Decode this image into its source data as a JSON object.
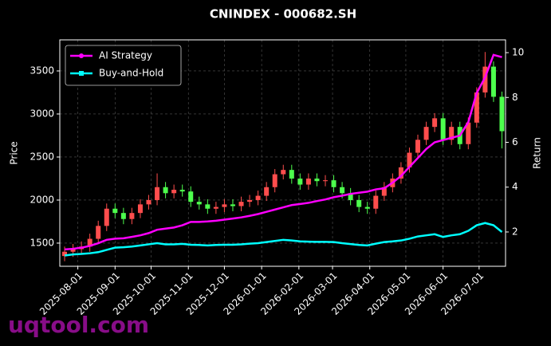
{
  "chart_data": {
    "type": "candlestick",
    "title": "CNINDEX - 000682.SH",
    "y_label": "Price",
    "y2_label": "Return",
    "watermark": "uqtool.com",
    "legend": "upper left",
    "grid": true,
    "up_color": "#ff4d4d",
    "down_color": "#4dff4d",
    "x": [
      "2025-07-21",
      "2025-07-28",
      "2025-08-04",
      "2025-08-11",
      "2025-08-18",
      "2025-08-25",
      "2025-09-01",
      "2025-09-08",
      "2025-09-15",
      "2025-09-22",
      "2025-09-29",
      "2025-10-06",
      "2025-10-13",
      "2025-10-20",
      "2025-10-27",
      "2025-11-03",
      "2025-11-10",
      "2025-11-17",
      "2025-11-24",
      "2025-12-01",
      "2025-12-08",
      "2025-12-15",
      "2025-12-22",
      "2025-12-29",
      "2026-01-05",
      "2026-01-12",
      "2026-01-19",
      "2026-01-26",
      "2026-02-02",
      "2026-02-09",
      "2026-02-16",
      "2026-02-23",
      "2026-03-02",
      "2026-03-09",
      "2026-03-16",
      "2026-03-23",
      "2026-03-30",
      "2026-04-06",
      "2026-04-13",
      "2026-04-20",
      "2026-04-27",
      "2026-05-04",
      "2026-05-11",
      "2026-05-18",
      "2026-05-25",
      "2026-06-01",
      "2026-06-08",
      "2026-06-15",
      "2026-06-22",
      "2026-06-29",
      "2026-07-06",
      "2026-07-13",
      "2026-07-20"
    ],
    "open": [
      1350,
      1400,
      1430,
      1460,
      1550,
      1700,
      1900,
      1850,
      1780,
      1850,
      1950,
      2000,
      2150,
      2080,
      2120,
      2100,
      1980,
      1950,
      1900,
      1920,
      1950,
      1930,
      1980,
      2000,
      2050,
      2150,
      2300,
      2350,
      2250,
      2180,
      2250,
      2220,
      2230,
      2150,
      2080,
      2000,
      1920,
      1900,
      2050,
      2150,
      2250,
      2380,
      2550,
      2700,
      2850,
      2950,
      2700,
      2850,
      2650,
      2900,
      3250,
      3550,
      3200
    ],
    "high": [
      1460,
      1490,
      1520,
      1610,
      1760,
      1960,
      1960,
      1910,
      1910,
      2010,
      2060,
      2310,
      2210,
      2180,
      2180,
      2160,
      2040,
      2010,
      1980,
      2010,
      2010,
      2040,
      2060,
      2110,
      2210,
      2360,
      2410,
      2410,
      2310,
      2310,
      2310,
      2290,
      2290,
      2210,
      2140,
      2060,
      1980,
      2110,
      2210,
      2310,
      2440,
      2610,
      2760,
      2910,
      3010,
      3010,
      2910,
      2910,
      2960,
      3310,
      3720,
      3610,
      3260
    ],
    "low": [
      1290,
      1340,
      1370,
      1400,
      1490,
      1640,
      1790,
      1720,
      1720,
      1790,
      1890,
      1940,
      2020,
      2020,
      2040,
      1920,
      1890,
      1840,
      1840,
      1860,
      1870,
      1870,
      1920,
      1940,
      1990,
      2090,
      2240,
      2190,
      2120,
      2120,
      2160,
      2160,
      2090,
      2020,
      1940,
      1860,
      1840,
      1840,
      1990,
      2090,
      2190,
      2320,
      2490,
      2640,
      2790,
      2640,
      2640,
      2590,
      2590,
      2840,
      3190,
      3140,
      2600
    ],
    "close": [
      1400,
      1430,
      1460,
      1550,
      1700,
      1900,
      1850,
      1780,
      1850,
      1950,
      2000,
      2150,
      2080,
      2120,
      2100,
      1980,
      1950,
      1900,
      1920,
      1950,
      1930,
      1980,
      2000,
      2050,
      2150,
      2300,
      2350,
      2250,
      2180,
      2250,
      2220,
      2230,
      2150,
      2080,
      2000,
      1920,
      1900,
      2050,
      2150,
      2250,
      2380,
      2550,
      2700,
      2850,
      2950,
      2700,
      2850,
      2650,
      2900,
      3250,
      3550,
      3200,
      2800
    ],
    "series": [
      {
        "name": "AI Strategy",
        "color": "#ff00ff",
        "axis": "y2",
        "values": [
          1.22,
          1.25,
          1.3,
          1.38,
          1.5,
          1.65,
          1.7,
          1.72,
          1.78,
          1.85,
          1.95,
          2.1,
          2.15,
          2.2,
          2.3,
          2.45,
          2.45,
          2.47,
          2.5,
          2.55,
          2.6,
          2.65,
          2.72,
          2.8,
          2.9,
          3.0,
          3.1,
          3.2,
          3.25,
          3.3,
          3.38,
          3.45,
          3.55,
          3.62,
          3.7,
          3.75,
          3.8,
          3.9,
          3.95,
          4.2,
          4.5,
          4.9,
          5.3,
          5.7,
          6.0,
          6.1,
          6.2,
          6.3,
          6.9,
          8.2,
          8.9,
          9.9,
          9.8
        ]
      },
      {
        "name": "Buy-and-Hold",
        "color": "#00ffff",
        "axis": "y2",
        "values": [
          0.95,
          1.0,
          1.02,
          1.05,
          1.1,
          1.2,
          1.3,
          1.32,
          1.35,
          1.4,
          1.45,
          1.5,
          1.45,
          1.45,
          1.47,
          1.43,
          1.42,
          1.4,
          1.42,
          1.43,
          1.43,
          1.45,
          1.48,
          1.5,
          1.55,
          1.6,
          1.65,
          1.62,
          1.58,
          1.57,
          1.56,
          1.56,
          1.55,
          1.5,
          1.46,
          1.42,
          1.4,
          1.48,
          1.55,
          1.58,
          1.62,
          1.7,
          1.8,
          1.85,
          1.9,
          1.78,
          1.85,
          1.9,
          2.05,
          2.3,
          2.4,
          2.3,
          2.0
        ]
      }
    ],
    "xlim": [
      "2025-07-17",
      "2026-07-23"
    ],
    "xticks": [
      "2025-08-01",
      "2025-09-01",
      "2025-10-01",
      "2025-11-01",
      "2025-12-01",
      "2026-01-01",
      "2026-02-01",
      "2026-03-01",
      "2026-04-01",
      "2026-05-01",
      "2026-06-01",
      "2026-07-01"
    ],
    "ylim": [
      1231,
      3861
    ],
    "yticks": [
      1500,
      2000,
      2500,
      3000,
      3500
    ],
    "y2lim": [
      0.47,
      10.57
    ],
    "y2ticks": [
      2,
      4,
      6,
      8,
      10
    ]
  }
}
